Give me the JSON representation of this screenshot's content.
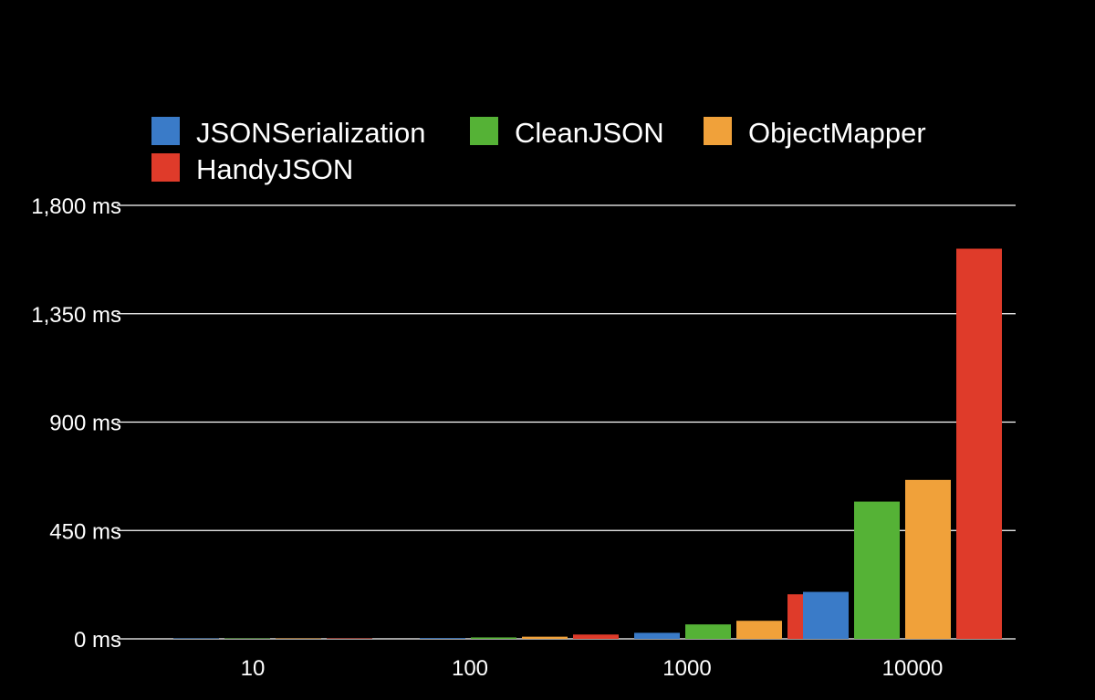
{
  "chart_data": {
    "type": "bar",
    "title": "",
    "xlabel": "",
    "ylabel": "",
    "categories": [
      "10",
      "100",
      "1000",
      "10000"
    ],
    "series": [
      {
        "name": "JSONSerialization",
        "color": "#3a7bc8",
        "values": [
          0.5,
          3,
          25,
          195
        ]
      },
      {
        "name": "CleanJSON",
        "color": "#55b236",
        "values": [
          0.8,
          6,
          60,
          570
        ]
      },
      {
        "name": "ObjectMapper",
        "color": "#f0a13a",
        "values": [
          1,
          9,
          75,
          660
        ]
      },
      {
        "name": "HandyJSON",
        "color": "#df3b2a",
        "values": [
          1.5,
          18,
          185,
          1620
        ]
      }
    ],
    "ylim": [
      0,
      1800
    ],
    "yticks": [
      0,
      450,
      900,
      1350,
      1800
    ],
    "ytick_labels": [
      "0 ms",
      "450 ms",
      "900 ms",
      "1,350 ms",
      "1,800 ms"
    ],
    "grid": true,
    "legend_position": "top-left",
    "background": "#000000"
  }
}
